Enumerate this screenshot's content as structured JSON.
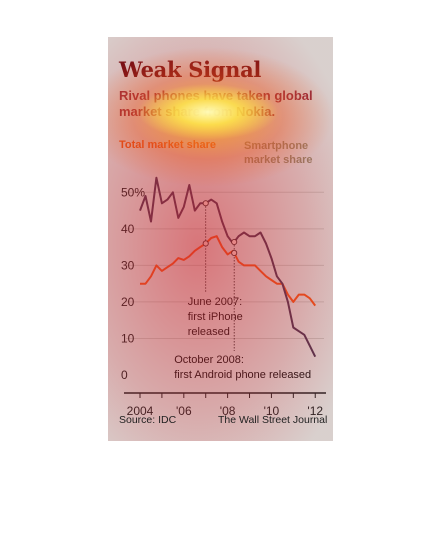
{
  "header": {
    "title": "Weak Signal",
    "subtitle": "Rival phones have taken global market share from Nokia."
  },
  "footer": {
    "source": "Source: IDC",
    "credit": "The Wall Street Journal"
  },
  "colors": {
    "total": "#e8551a",
    "smartphone": "#4a3550",
    "title": "#6b0e12",
    "background": "#d9d9d6"
  },
  "chart_data": {
    "type": "line",
    "x_ticks": [
      "2004",
      "'06",
      "'08",
      "'10",
      "'12"
    ],
    "y_ticks": [
      "50%",
      "40",
      "30",
      "20",
      "10",
      "0"
    ],
    "ylim": [
      0,
      52
    ],
    "xlim": [
      2004,
      2012.4
    ],
    "series": [
      {
        "name": "Total market share",
        "x": [
          2004.0,
          2004.25,
          2004.5,
          2004.75,
          2005.0,
          2005.25,
          2005.5,
          2005.75,
          2006.0,
          2006.25,
          2006.5,
          2006.75,
          2007.0,
          2007.25,
          2007.5,
          2007.75,
          2008.0,
          2008.25,
          2008.5,
          2008.75,
          2009.0,
          2009.25,
          2009.5,
          2009.75,
          2010.0,
          2010.25,
          2010.5,
          2010.75,
          2011.0,
          2011.25,
          2011.5,
          2011.75,
          2012.0
        ],
        "values": [
          25,
          25,
          27,
          30,
          28.5,
          29.5,
          30.5,
          32,
          31.5,
          32.5,
          34,
          35,
          36,
          37.5,
          38,
          35,
          33,
          34,
          31,
          30,
          30,
          30,
          28.5,
          27,
          26,
          25,
          25,
          22,
          20,
          22,
          22,
          21,
          19
        ]
      },
      {
        "name": "Smartphone market share",
        "x": [
          2004.0,
          2004.25,
          2004.5,
          2004.75,
          2005.0,
          2005.25,
          2005.5,
          2005.75,
          2006.0,
          2006.25,
          2006.5,
          2006.75,
          2007.0,
          2007.25,
          2007.5,
          2007.75,
          2008.0,
          2008.25,
          2008.5,
          2008.75,
          2009.0,
          2009.25,
          2009.5,
          2009.75,
          2010.0,
          2010.25,
          2010.5,
          2010.75,
          2011.0,
          2011.25,
          2011.5,
          2011.75,
          2012.0
        ],
        "values": [
          45,
          49,
          42,
          54,
          47,
          48,
          50,
          43,
          46,
          52,
          45,
          47,
          47,
          48,
          47,
          42,
          38,
          36,
          38,
          39,
          38,
          38,
          39,
          36,
          32,
          27,
          25,
          20,
          13,
          12,
          11,
          8,
          5
        ]
      }
    ],
    "annotations": [
      {
        "text_lines": [
          "June 2007:",
          "first iPhone",
          "released"
        ],
        "x": 2007.0
      },
      {
        "text_lines": [
          "October 2008:",
          "first Android phone released"
        ],
        "x": 2008.3
      }
    ]
  }
}
